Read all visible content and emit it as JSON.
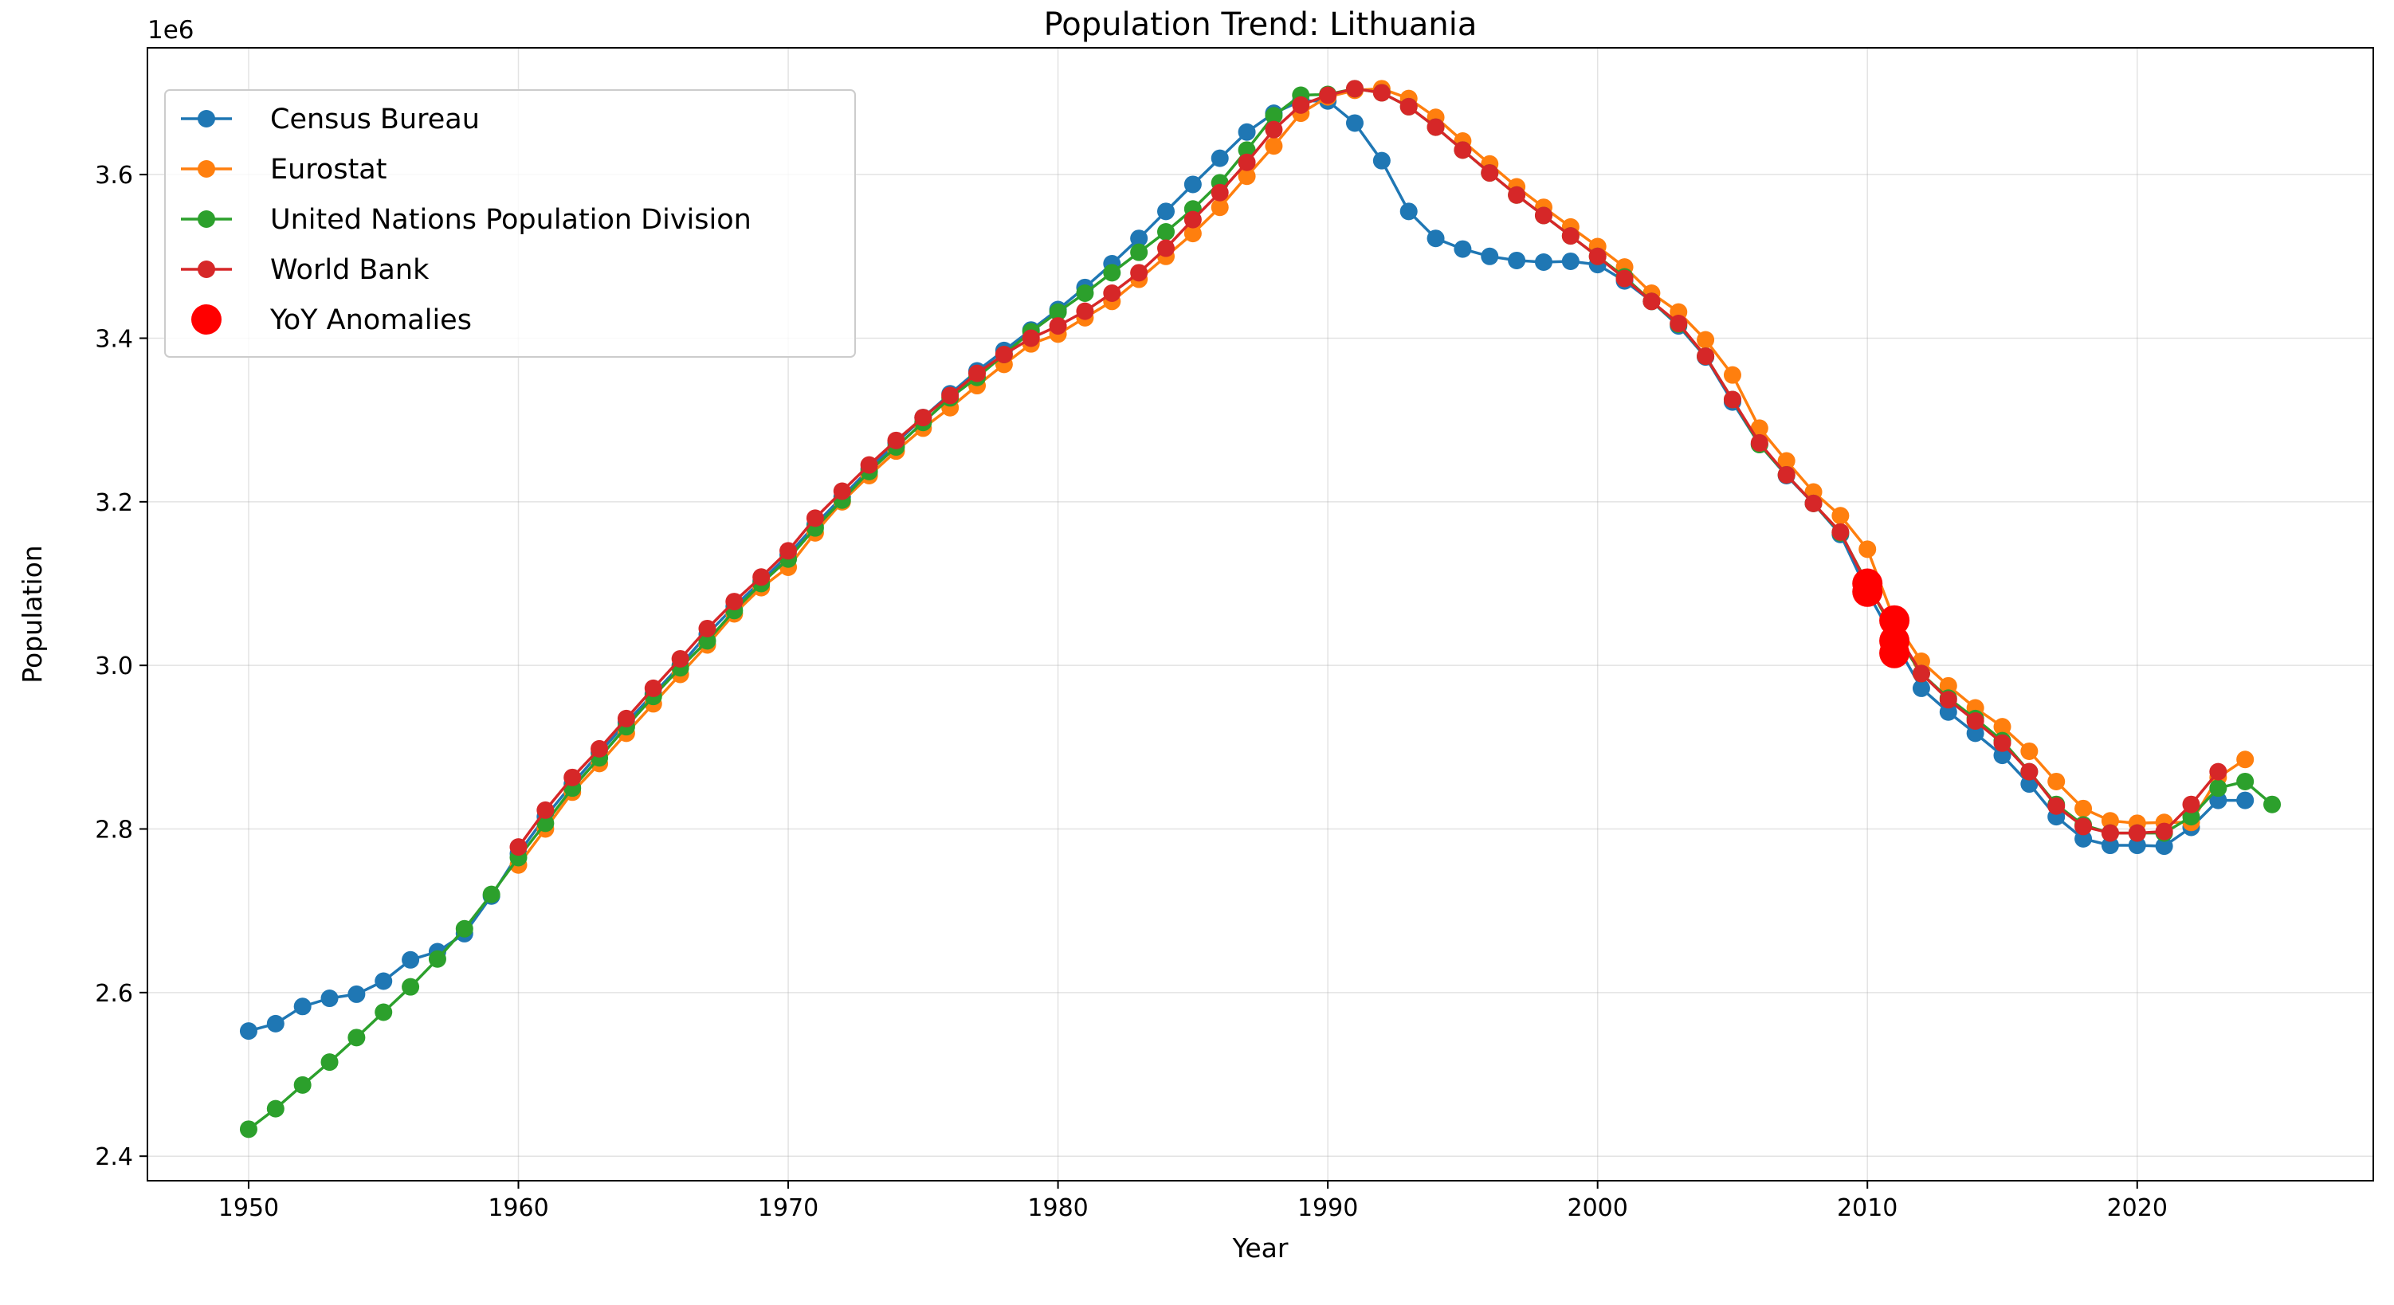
{
  "chart_data": {
    "type": "line",
    "title": "Population Trend: Lithuania",
    "xlabel": "Year",
    "ylabel": "Population",
    "y_offset_label": "1e6",
    "xlim": [
      1946.25,
      2028.75
    ],
    "ylim": [
      2.37,
      3.755
    ],
    "x_ticks": [
      1950,
      1960,
      1970,
      1980,
      1990,
      2000,
      2010,
      2020
    ],
    "y_ticks": [
      2.4,
      2.6,
      2.8,
      3.0,
      3.2,
      3.4,
      3.6
    ],
    "y_tick_labels": [
      "2.4",
      "2.6",
      "2.8",
      "3.0",
      "3.2",
      "3.4",
      "3.6"
    ],
    "grid": true,
    "legend_position": "top-left",
    "series": [
      {
        "name": "Census Bureau",
        "color": "#1f77b4",
        "x": [
          1950,
          1951,
          1952,
          1953,
          1954,
          1955,
          1956,
          1957,
          1958,
          1959,
          1960,
          1961,
          1962,
          1963,
          1964,
          1965,
          1966,
          1967,
          1968,
          1969,
          1970,
          1971,
          1972,
          1973,
          1974,
          1975,
          1976,
          1977,
          1978,
          1979,
          1980,
          1981,
          1982,
          1983,
          1984,
          1985,
          1986,
          1987,
          1988,
          1989,
          1990,
          1991,
          1992,
          1993,
          1994,
          1995,
          1996,
          1997,
          1998,
          1999,
          2000,
          2001,
          2002,
          2003,
          2004,
          2005,
          2006,
          2007,
          2008,
          2009,
          2010,
          2011,
          2012,
          2013,
          2014,
          2015,
          2016,
          2017,
          2018,
          2019,
          2020,
          2021,
          2022,
          2023,
          2024
        ],
        "y": [
          2.553,
          2.562,
          2.583,
          2.593,
          2.598,
          2.614,
          2.64,
          2.65,
          2.672,
          2.718,
          2.77,
          2.815,
          2.855,
          2.893,
          2.93,
          2.965,
          3.0,
          3.038,
          3.072,
          3.103,
          3.135,
          3.172,
          3.206,
          3.24,
          3.272,
          3.303,
          3.332,
          3.36,
          3.385,
          3.41,
          3.435,
          3.462,
          3.491,
          3.522,
          3.555,
          3.588,
          3.62,
          3.652,
          3.675,
          3.69,
          3.69,
          3.663,
          3.617,
          3.555,
          3.522,
          3.509,
          3.5,
          3.495,
          3.493,
          3.494,
          3.49,
          3.47,
          3.445,
          3.415,
          3.377,
          3.322,
          3.27,
          3.232,
          3.198,
          3.16,
          3.09,
          3.03,
          2.972,
          2.943,
          2.917,
          2.89,
          2.855,
          2.815,
          2.788,
          2.78,
          2.78,
          2.779,
          2.802,
          2.835,
          2.835
        ]
      },
      {
        "name": "Eurostat",
        "color": "#ff7f0e",
        "x": [
          1960,
          1961,
          1962,
          1963,
          1964,
          1965,
          1966,
          1967,
          1968,
          1969,
          1970,
          1971,
          1972,
          1973,
          1974,
          1975,
          1976,
          1977,
          1978,
          1979,
          1980,
          1981,
          1982,
          1983,
          1984,
          1985,
          1986,
          1987,
          1988,
          1989,
          1990,
          1991,
          1992,
          1993,
          1994,
          1995,
          1996,
          1997,
          1998,
          1999,
          2000,
          2001,
          2002,
          2003,
          2004,
          2005,
          2006,
          2007,
          2008,
          2009,
          2010,
          2011,
          2012,
          2013,
          2014,
          2015,
          2016,
          2017,
          2018,
          2019,
          2020,
          2021,
          2022,
          2023,
          2024
        ],
        "y": [
          2.756,
          2.8,
          2.845,
          2.88,
          2.917,
          2.953,
          2.989,
          3.025,
          3.063,
          3.095,
          3.12,
          3.162,
          3.2,
          3.232,
          3.262,
          3.29,
          3.315,
          3.342,
          3.368,
          3.393,
          3.405,
          3.425,
          3.445,
          3.472,
          3.5,
          3.528,
          3.56,
          3.598,
          3.635,
          3.675,
          3.695,
          3.703,
          3.705,
          3.693,
          3.67,
          3.641,
          3.613,
          3.585,
          3.56,
          3.536,
          3.512,
          3.487,
          3.455,
          3.432,
          3.398,
          3.355,
          3.29,
          3.25,
          3.212,
          3.183,
          3.142,
          3.055,
          3.005,
          2.975,
          2.948,
          2.925,
          2.895,
          2.858,
          2.825,
          2.81,
          2.807,
          2.808,
          2.808,
          2.863,
          2.885
        ]
      },
      {
        "name": "United Nations Population Division",
        "color": "#2ca02c",
        "x": [
          1950,
          1951,
          1952,
          1953,
          1954,
          1955,
          1956,
          1957,
          1958,
          1959,
          1960,
          1961,
          1962,
          1963,
          1964,
          1965,
          1966,
          1967,
          1968,
          1969,
          1970,
          1971,
          1972,
          1973,
          1974,
          1975,
          1976,
          1977,
          1978,
          1979,
          1980,
          1981,
          1982,
          1983,
          1984,
          1985,
          1986,
          1987,
          1988,
          1989,
          1990,
          1991,
          1992,
          1993,
          1994,
          1995,
          1996,
          1997,
          1998,
          1999,
          2000,
          2001,
          2002,
          2003,
          2004,
          2005,
          2006,
          2007,
          2008,
          2009,
          2010,
          2011,
          2012,
          2013,
          2014,
          2015,
          2016,
          2017,
          2018,
          2019,
          2020,
          2021,
          2022,
          2023,
          2024,
          2025
        ],
        "y": [
          2.433,
          2.458,
          2.487,
          2.515,
          2.545,
          2.576,
          2.607,
          2.641,
          2.678,
          2.72,
          2.765,
          2.807,
          2.85,
          2.887,
          2.925,
          2.962,
          2.997,
          3.03,
          3.067,
          3.1,
          3.13,
          3.168,
          3.202,
          3.237,
          3.267,
          3.297,
          3.327,
          3.352,
          3.38,
          3.408,
          3.432,
          3.455,
          3.48,
          3.505,
          3.53,
          3.558,
          3.59,
          3.63,
          3.672,
          3.697,
          3.698,
          3.705,
          3.7,
          3.683,
          3.658,
          3.63,
          3.602,
          3.575,
          3.55,
          3.525,
          3.5,
          3.475,
          3.445,
          3.417,
          3.378,
          3.325,
          3.27,
          3.233,
          3.198,
          3.162,
          3.1,
          3.04,
          2.99,
          2.96,
          2.935,
          2.908,
          2.87,
          2.83,
          2.805,
          2.795,
          2.795,
          2.795,
          2.815,
          2.85,
          2.858,
          2.83
        ]
      },
      {
        "name": "World Bank",
        "color": "#d62728",
        "x": [
          1960,
          1961,
          1962,
          1963,
          1964,
          1965,
          1966,
          1967,
          1968,
          1969,
          1970,
          1971,
          1972,
          1973,
          1974,
          1975,
          1976,
          1977,
          1978,
          1979,
          1980,
          1981,
          1982,
          1983,
          1984,
          1985,
          1986,
          1987,
          1988,
          1989,
          1990,
          1991,
          1992,
          1993,
          1994,
          1995,
          1996,
          1997,
          1998,
          1999,
          2000,
          2001,
          2002,
          2003,
          2004,
          2005,
          2006,
          2007,
          2008,
          2009,
          2010,
          2011,
          2012,
          2013,
          2014,
          2015,
          2016,
          2017,
          2018,
          2019,
          2020,
          2021,
          2022,
          2023
        ],
        "y": [
          2.778,
          2.823,
          2.863,
          2.898,
          2.935,
          2.972,
          3.008,
          3.045,
          3.078,
          3.108,
          3.14,
          3.18,
          3.213,
          3.245,
          3.275,
          3.303,
          3.33,
          3.357,
          3.38,
          3.4,
          3.415,
          3.433,
          3.455,
          3.48,
          3.51,
          3.545,
          3.578,
          3.615,
          3.655,
          3.685,
          3.697,
          3.705,
          3.7,
          3.683,
          3.658,
          3.63,
          3.602,
          3.575,
          3.55,
          3.525,
          3.5,
          3.473,
          3.445,
          3.418,
          3.378,
          3.325,
          3.272,
          3.233,
          3.198,
          3.163,
          3.098,
          3.045,
          2.99,
          2.958,
          2.932,
          2.905,
          2.87,
          2.828,
          2.803,
          2.795,
          2.795,
          2.797,
          2.83,
          2.87
        ]
      }
    ],
    "anomalies": {
      "name": "YoY Anomalies",
      "color": "#ff0000",
      "x": [
        2010,
        2010,
        2011,
        2011,
        2011
      ],
      "y": [
        3.1,
        3.09,
        3.055,
        3.03,
        3.015
      ]
    }
  }
}
